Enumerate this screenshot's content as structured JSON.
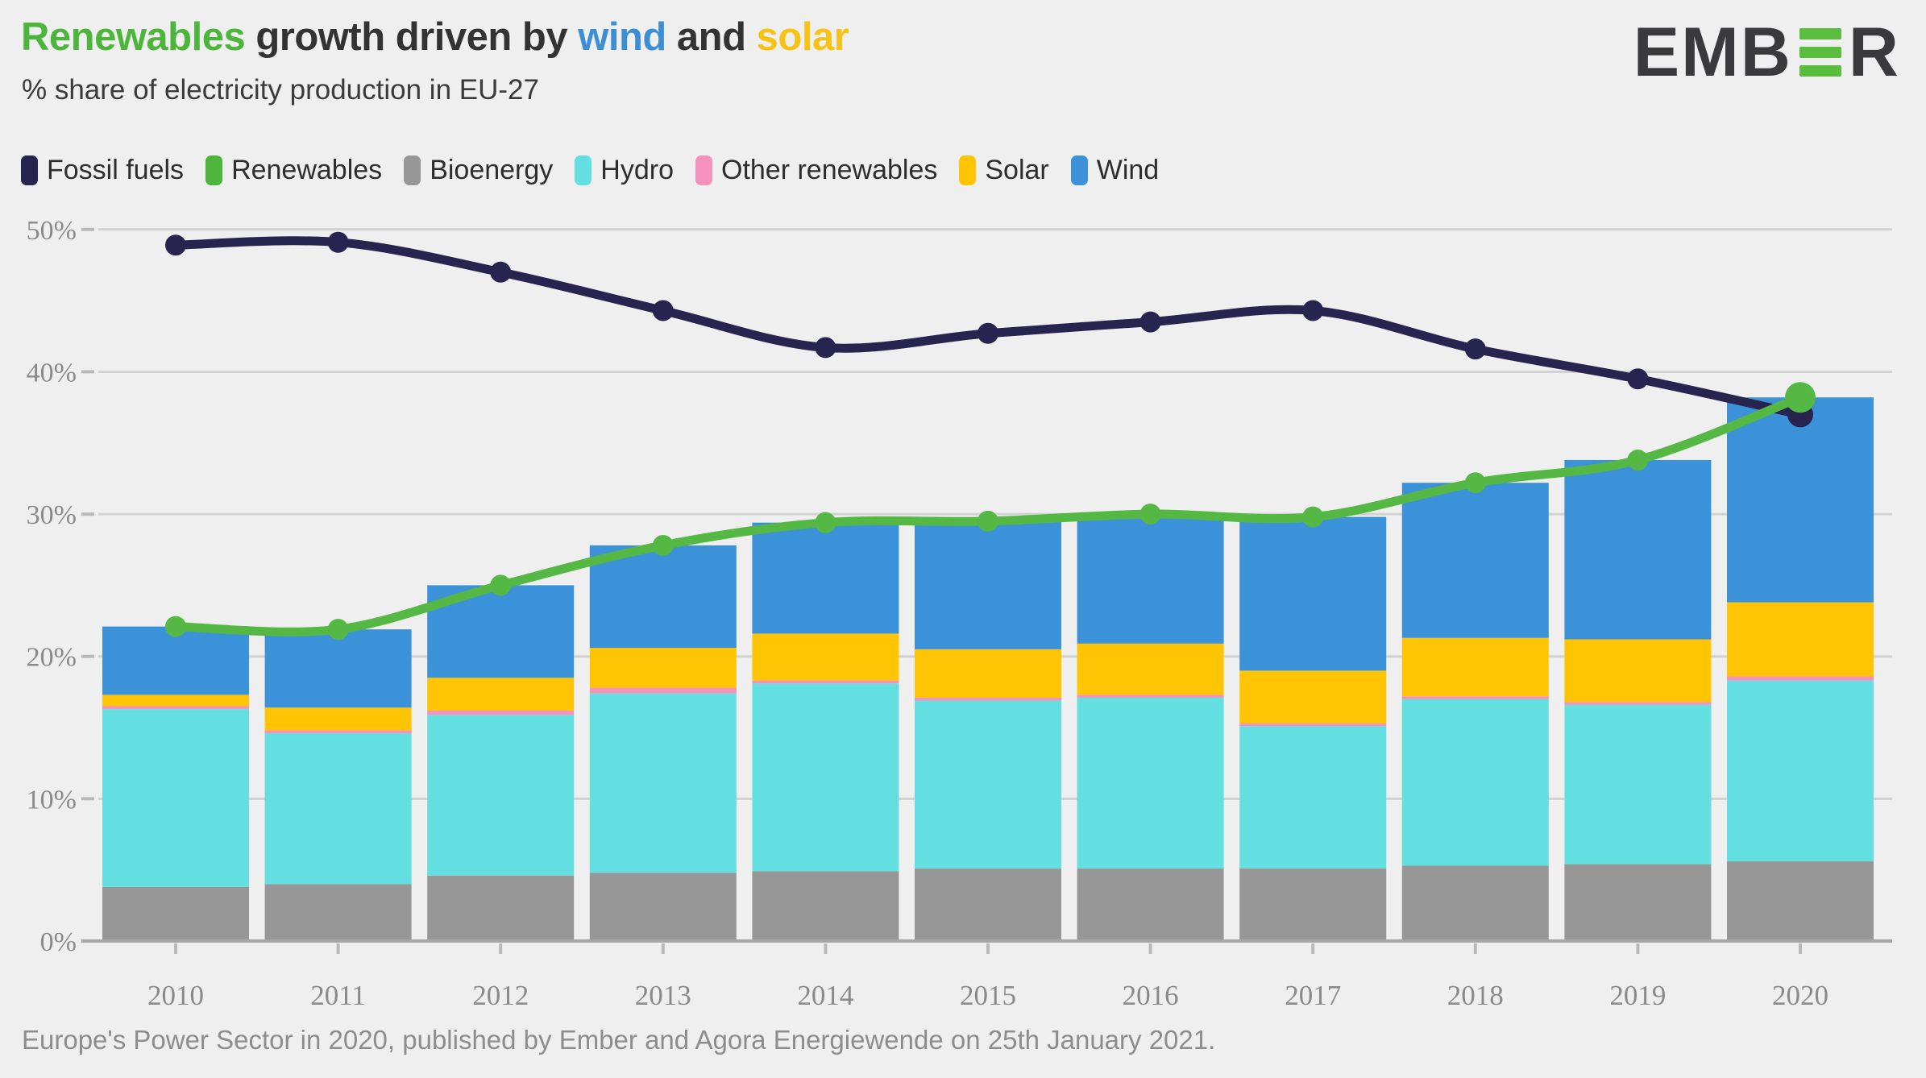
{
  "header": {
    "title_parts": [
      {
        "text": "Renewables",
        "color": "#4db53c"
      },
      {
        "text": " growth driven by ",
        "color": "#333333"
      },
      {
        "text": "wind",
        "color": "#3e8ed5"
      },
      {
        "text": " and ",
        "color": "#333333"
      },
      {
        "text": "solar",
        "color": "#f6c213"
      }
    ],
    "subtitle": "% share of electricity production in EU-27",
    "logo": {
      "left": "EMB",
      "right": "R",
      "bar_color": "#5bbd3e"
    }
  },
  "legend": {
    "items": [
      {
        "label": "Fossil fuels",
        "color": "#272450"
      },
      {
        "label": "Renewables",
        "color": "#4db53c"
      },
      {
        "label": "Bioenergy",
        "color": "#979797"
      },
      {
        "label": "Hydro",
        "color": "#63dfe2"
      },
      {
        "label": "Other renewables",
        "color": "#f491bc"
      },
      {
        "label": "Solar",
        "color": "#ffc403"
      },
      {
        "label": "Wind",
        "color": "#3c92d8"
      }
    ]
  },
  "chart_data": {
    "type": "stacked-bar+line",
    "title": "Renewables growth driven by wind and solar",
    "subtitle": "% share of electricity production in EU-27",
    "x": [
      "2010",
      "2011",
      "2012",
      "2013",
      "2014",
      "2015",
      "2016",
      "2017",
      "2018",
      "2019",
      "2020"
    ],
    "y_axis": {
      "min": 0,
      "max": 50,
      "tick_step": 10,
      "tick_labels": [
        "0%",
        "10%",
        "20%",
        "30%",
        "40%",
        "50%"
      ],
      "grid": true,
      "grid_color": "#d2d2d2",
      "axis_color": "#a6a6a6",
      "tick_color": "#b9b9b9",
      "label_color": "#8a8a8a"
    },
    "bar_series": [
      {
        "name": "Bioenergy",
        "color": "#979797",
        "values": [
          3.8,
          4.0,
          4.6,
          4.8,
          4.9,
          5.1,
          5.1,
          5.1,
          5.3,
          5.4,
          5.6
        ]
      },
      {
        "name": "Hydro",
        "color": "#63dfe2",
        "values": [
          12.5,
          10.6,
          11.3,
          12.6,
          13.2,
          11.8,
          12.0,
          10.0,
          11.7,
          11.2,
          12.7
        ]
      },
      {
        "name": "Other renewables",
        "color": "#f491bc",
        "values": [
          0.2,
          0.2,
          0.3,
          0.4,
          0.2,
          0.2,
          0.2,
          0.2,
          0.2,
          0.2,
          0.3
        ]
      },
      {
        "name": "Solar",
        "color": "#ffc403",
        "values": [
          0.8,
          1.6,
          2.3,
          2.8,
          3.3,
          3.4,
          3.6,
          3.7,
          4.1,
          4.4,
          5.2
        ]
      },
      {
        "name": "Wind",
        "color": "#3c92d8",
        "values": [
          4.8,
          5.5,
          6.5,
          7.2,
          7.8,
          9.0,
          9.1,
          10.8,
          10.9,
          12.6,
          14.4
        ]
      }
    ],
    "line_series": [
      {
        "name": "Fossil fuels",
        "color": "#272450",
        "values": [
          48.9,
          49.1,
          47.0,
          44.3,
          41.7,
          42.7,
          43.5,
          44.3,
          41.6,
          39.5,
          37.0
        ]
      },
      {
        "name": "Renewables",
        "color": "#56b844",
        "values": [
          22.1,
          21.9,
          25.0,
          27.8,
          29.4,
          29.5,
          30.0,
          29.8,
          32.2,
          33.8,
          38.2
        ]
      }
    ],
    "legend_position": "top"
  },
  "footer": {
    "source_text": "Europe's Power Sector in 2020, published by Ember and Agora Energiewende on 25th January 2021."
  }
}
